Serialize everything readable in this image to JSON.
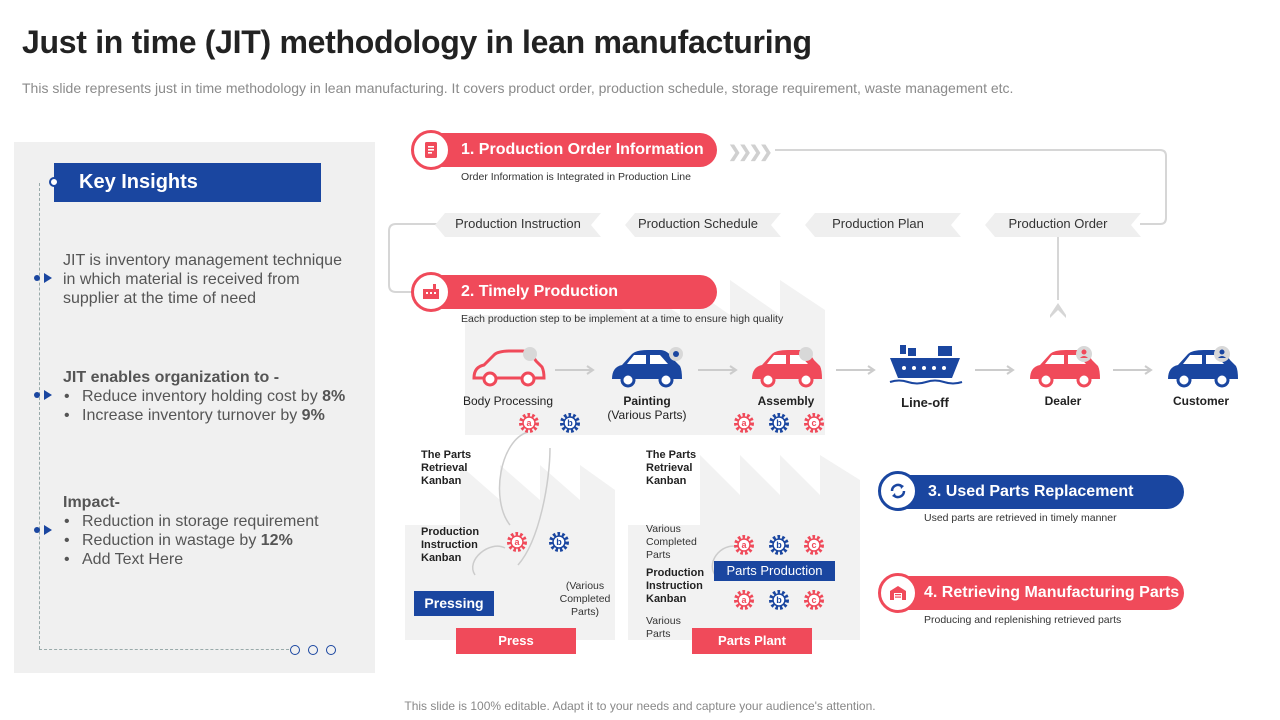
{
  "header": {
    "title": "Just in time (JIT) methodology in lean manufacturing",
    "subtitle": "This slide represents just in time methodology in lean manufacturing. It covers product order, production schedule, storage requirement, waste management etc."
  },
  "insights": {
    "heading": "Key Insights",
    "p1": [
      "JIT is inventory management technique",
      "in which material is received from",
      "supplier at the time of need"
    ],
    "p2_heading": "JIT enables organization to -",
    "p2_items": [
      {
        "text": "Reduce inventory holding cost by ",
        "bold": "8%"
      },
      {
        "text": "Increase inventory turnover by ",
        "bold": "9%"
      }
    ],
    "p3_heading": "Impact-",
    "p3_items": [
      {
        "text": "Reduction in storage requirement",
        "bold": ""
      },
      {
        "text": "Reduction in wastage by ",
        "bold": "12%"
      },
      {
        "text": "Add Text Here",
        "bold": ""
      }
    ]
  },
  "steps": [
    {
      "label": "1. Production Order Information",
      "desc": "Order Information is Integrated in Production Line"
    },
    {
      "label": "2. Timely Production",
      "desc": "Each production step to be implement at a time to ensure high quality"
    },
    {
      "label": "3. Used Parts Replacement",
      "desc": "Used parts are retrieved in timely manner"
    },
    {
      "label": "4. Retrieving Manufacturing Parts",
      "desc": "Producing and replenishing retrieved parts"
    }
  ],
  "order_flow": [
    "Production Instruction",
    "Production Schedule",
    "Production Plan",
    "Production Order"
  ],
  "process": {
    "body": "Body Processing",
    "painting": "Painting",
    "painting_sub": "(Various Parts)",
    "assembly": "Assembly",
    "lineoff": "Line-off",
    "dealer": "Dealer",
    "customer": "Customer"
  },
  "kanban": {
    "parts_retrieval_1": [
      "The Parts",
      "Retrieval",
      "Kanban"
    ],
    "prod_instr_1": [
      "Production",
      "Instruction",
      "Kanban"
    ],
    "various_completed_1": [
      "(Various",
      "Completed",
      "Parts)"
    ],
    "pressing": "Pressing",
    "press": "Press",
    "parts_retrieval_2": [
      "The Parts",
      "Retrieval",
      "Kanban"
    ],
    "various_completed_2": [
      "Various",
      "Completed",
      "Parts"
    ],
    "prod_instr_2": [
      "Production",
      "Instruction",
      "Kanban"
    ],
    "various_parts": [
      "Various",
      "Parts"
    ],
    "parts_production": "Parts Production",
    "parts_plant": "Parts Plant"
  },
  "gear_labels": {
    "a": "a",
    "b": "b",
    "c": "c"
  },
  "colors": {
    "red": "#f04a5a",
    "blue": "#1a46a0",
    "panel": "#f0f0f0"
  },
  "footer": "This slide is 100% editable. Adapt it to your needs and capture your audience's attention."
}
